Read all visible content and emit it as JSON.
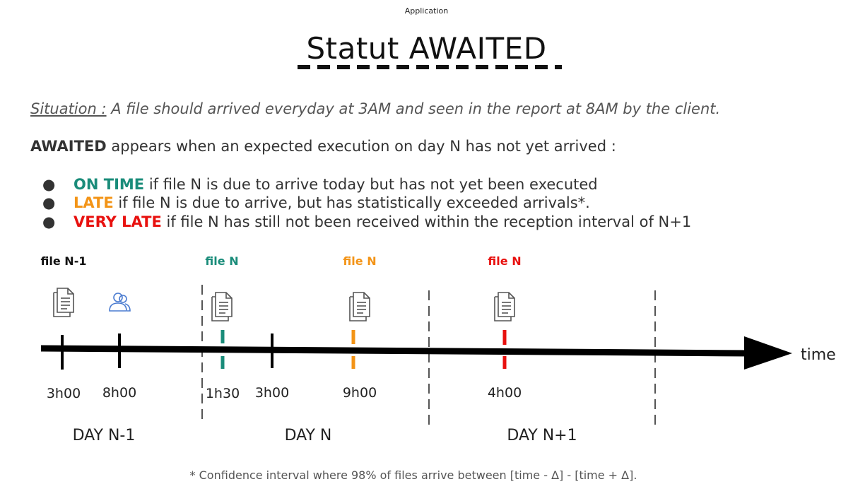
{
  "header": {
    "small_title": "Application"
  },
  "title": "Statut AWAITED",
  "situation": {
    "label": "Situation :",
    "text": "A file should arrived everyday at 3AM and seen in the report at 8AM by the client."
  },
  "intro": {
    "bold": "AWAITED",
    "text": "appears when an expected execution on day N has not yet arrived :"
  },
  "bullets": [
    {
      "dot": "●",
      "status": "ON TIME",
      "color": "#1a8c7a",
      "text": "if file N is due to arrive today but has not yet been executed"
    },
    {
      "dot": "●",
      "status": "LATE",
      "color": "#f39417",
      "text": "if file N is due to arrive, but has statistically exceeded arrivals*."
    },
    {
      "dot": "●",
      "status": "VERY LATE",
      "color": "#e8110f",
      "text": "if file N has still not been received within the reception interval of N+1"
    }
  ],
  "timeline": {
    "axis_label": "time",
    "file_labels": [
      {
        "text": "file N-1",
        "color": "#111111"
      },
      {
        "text": "file N",
        "color": "#1a8c7a"
      },
      {
        "text": "file N",
        "color": "#f39417"
      },
      {
        "text": "file N",
        "color": "#e8110f"
      }
    ],
    "times": [
      "3h00",
      "8h00",
      "1h30",
      "3h00",
      "9h00",
      "4h00"
    ],
    "days": [
      "DAY N-1",
      "DAY N",
      "DAY N+1"
    ],
    "icons": [
      "document-icon",
      "users-icon",
      "document-icon",
      "document-icon",
      "document-icon"
    ],
    "colors": {
      "ontime": "#1a8c7a",
      "late": "#f39417",
      "verylate": "#e8110f",
      "users": "#4a7bd0"
    }
  },
  "footnote": "* Confidence interval where 98% of files arrive between [time - Δ] - [time + Δ]."
}
